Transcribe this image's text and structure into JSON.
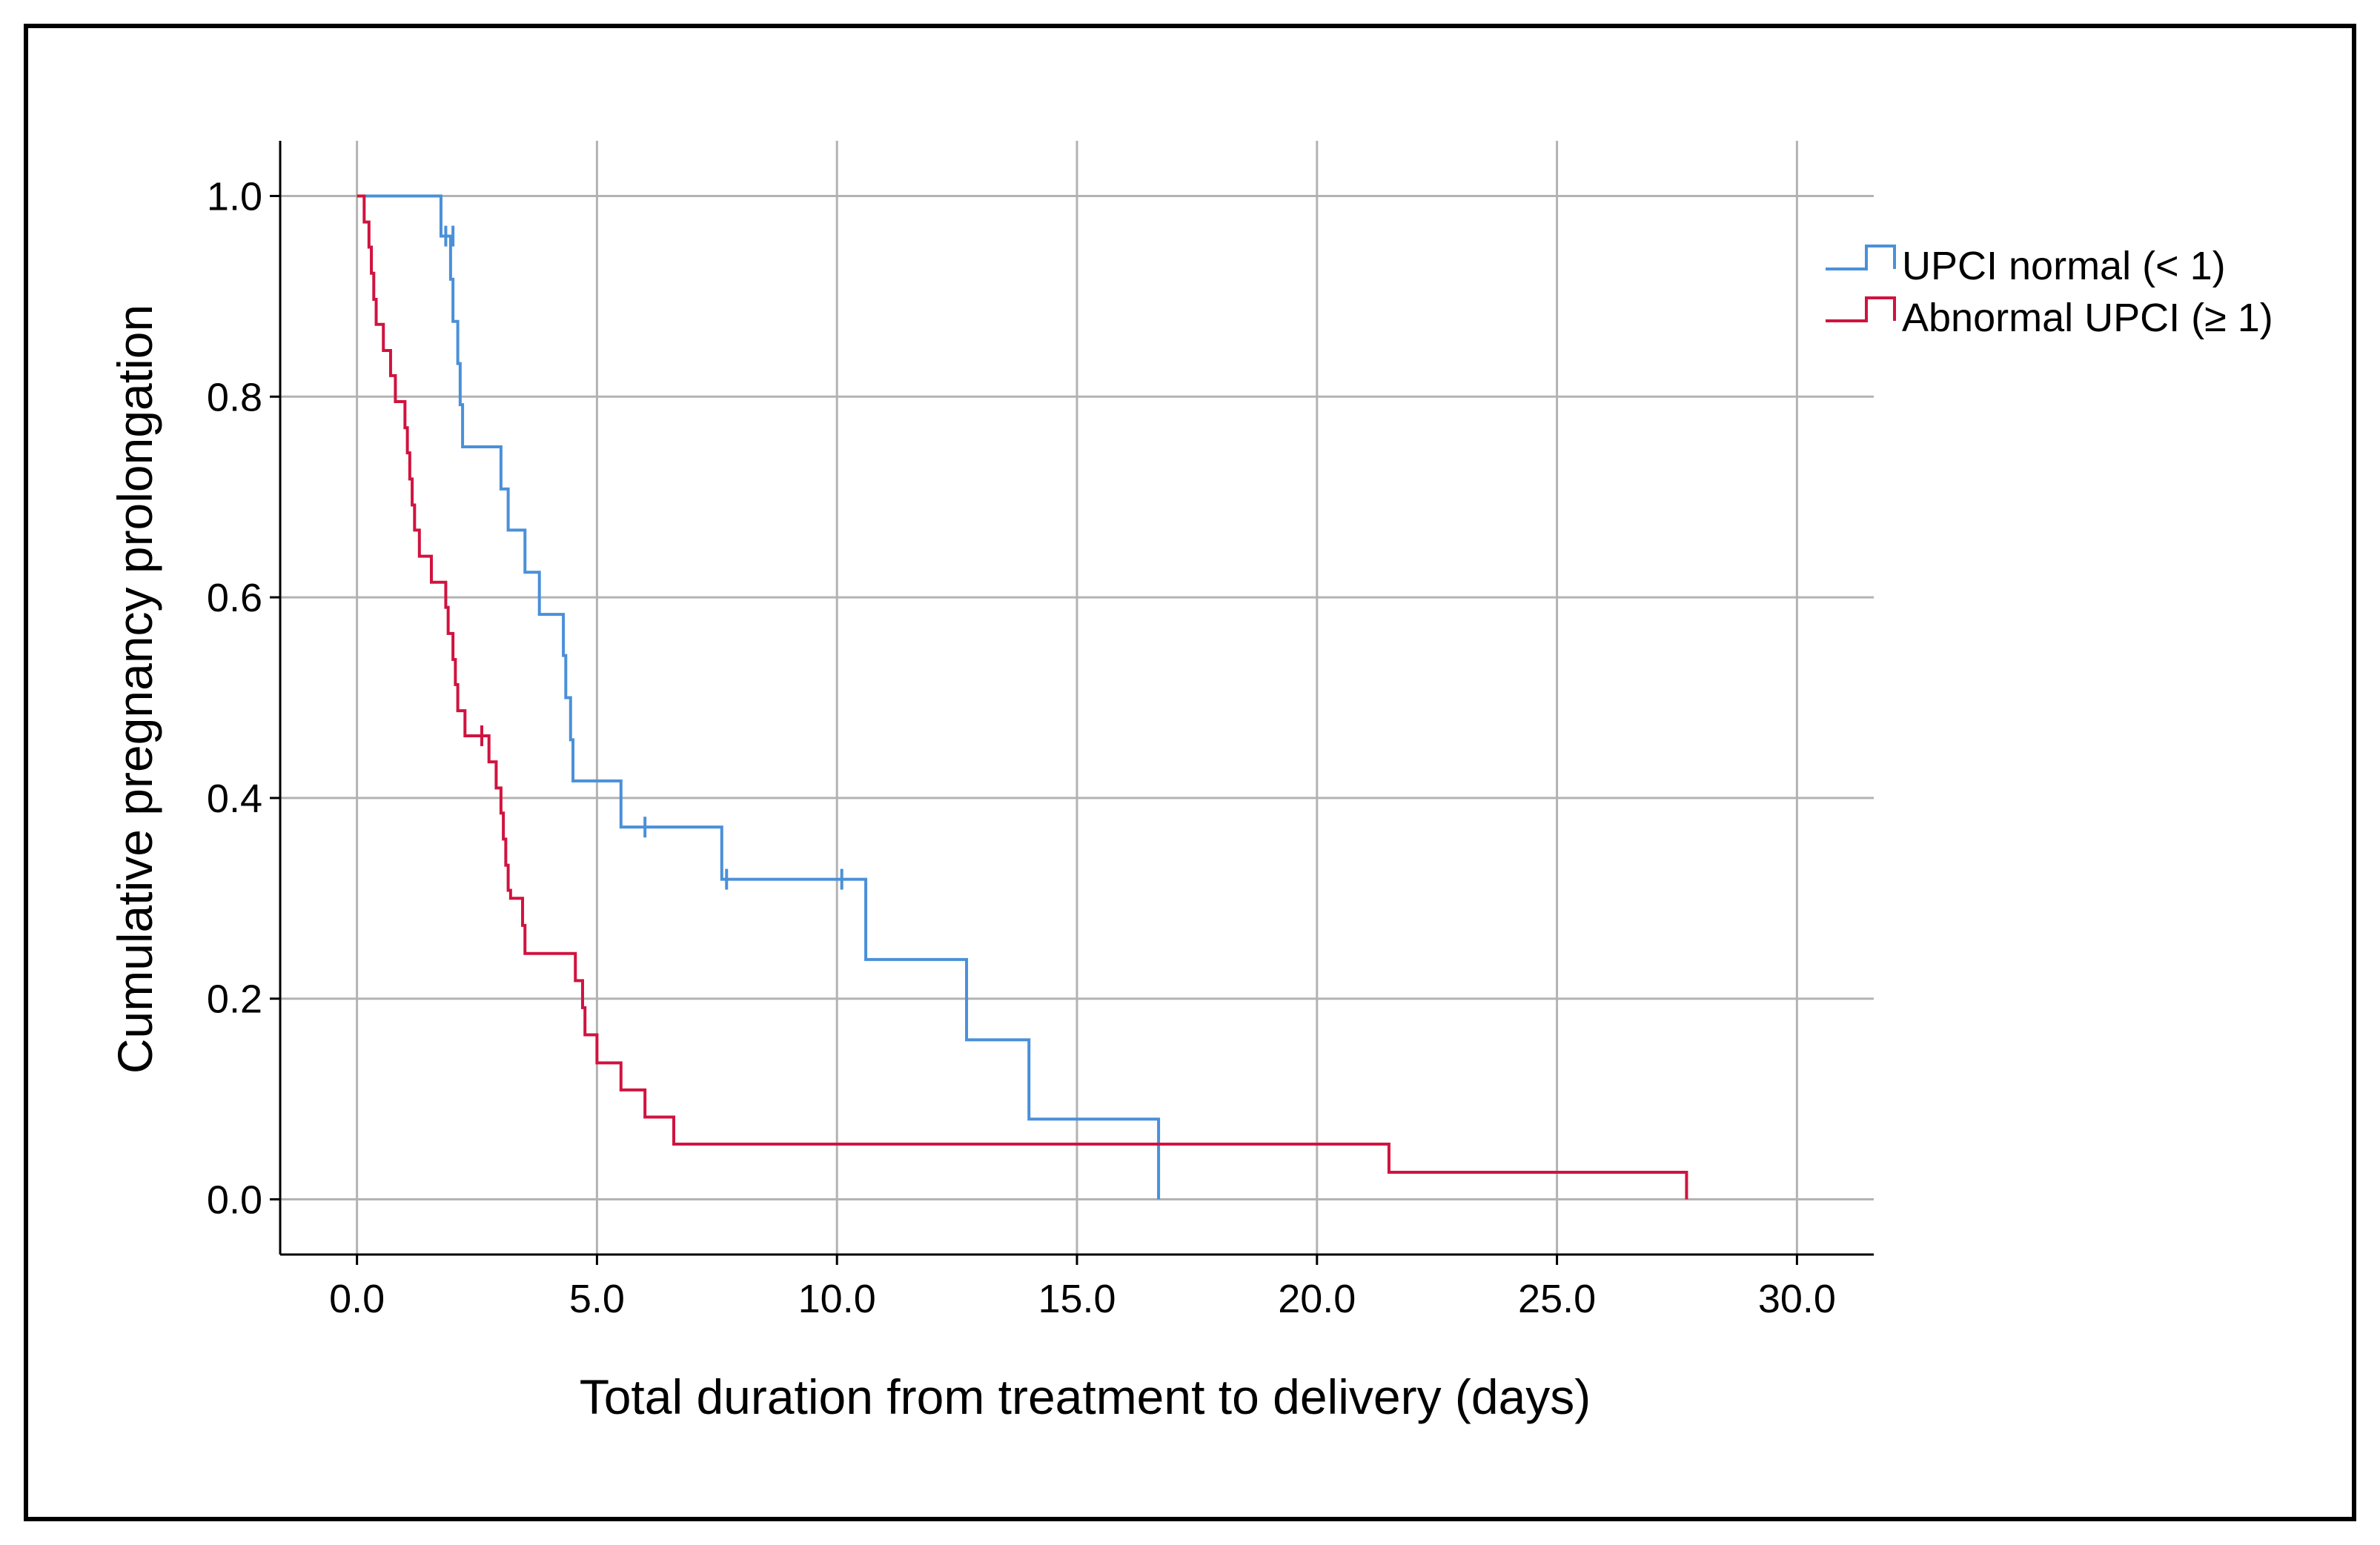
{
  "chart_data": {
    "type": "line",
    "subtype": "kaplan-meier step",
    "xlabel": "Total duration from treatment to delivery (days)",
    "ylabel": "Cumulative pregnancy prolongation",
    "xlim": [
      -1.6,
      31.6
    ],
    "ylim": [
      -0.055,
      1.055
    ],
    "xticks": [
      0,
      5,
      10,
      15,
      20,
      25,
      30
    ],
    "xtick_labels": [
      "0.0",
      "5.0",
      "10.0",
      "15.0",
      "20.0",
      "25.0",
      "30.0"
    ],
    "yticks": [
      0,
      0.2,
      0.4,
      0.6,
      0.8,
      1.0
    ],
    "ytick_labels": [
      "0.0",
      "0.2",
      "0.4",
      "0.6",
      "0.8",
      "1.0"
    ],
    "grid": true,
    "legend_position": "right",
    "series": [
      {
        "name": "UPCI normal (< 1)",
        "color": "#4a90d9",
        "steps": [
          [
            0.0,
            1.0
          ],
          [
            1.75,
            0.96
          ],
          [
            1.95,
            0.917
          ],
          [
            2.0,
            0.875
          ],
          [
            2.1,
            0.833
          ],
          [
            2.15,
            0.792
          ],
          [
            2.2,
            0.75
          ],
          [
            3.0,
            0.708
          ],
          [
            3.15,
            0.667
          ],
          [
            3.5,
            0.625
          ],
          [
            3.8,
            0.583
          ],
          [
            4.3,
            0.542
          ],
          [
            4.35,
            0.5
          ],
          [
            4.45,
            0.458
          ],
          [
            4.5,
            0.417
          ],
          [
            5.5,
            0.371
          ],
          [
            7.6,
            0.319
          ],
          [
            10.6,
            0.239
          ],
          [
            12.7,
            0.159
          ],
          [
            14.0,
            0.08
          ],
          [
            16.7,
            0.0
          ]
        ],
        "end": 16.7,
        "censored": [
          [
            1.85,
            0.96
          ],
          [
            2.0,
            0.96
          ],
          [
            6.0,
            0.371
          ],
          [
            7.7,
            0.319
          ],
          [
            10.1,
            0.319
          ]
        ]
      },
      {
        "name": "Abnormal UPCI (≥ 1)",
        "color": "#d0133f",
        "steps": [
          [
            0.0,
            1.0
          ],
          [
            0.15,
            0.974
          ],
          [
            0.25,
            0.949
          ],
          [
            0.3,
            0.923
          ],
          [
            0.35,
            0.897
          ],
          [
            0.4,
            0.872
          ],
          [
            0.55,
            0.846
          ],
          [
            0.7,
            0.821
          ],
          [
            0.8,
            0.795
          ],
          [
            1.0,
            0.769
          ],
          [
            1.05,
            0.744
          ],
          [
            1.1,
            0.718
          ],
          [
            1.15,
            0.692
          ],
          [
            1.2,
            0.667
          ],
          [
            1.3,
            0.641
          ],
          [
            1.55,
            0.615
          ],
          [
            1.85,
            0.59
          ],
          [
            1.9,
            0.564
          ],
          [
            2.0,
            0.538
          ],
          [
            2.05,
            0.513
          ],
          [
            2.1,
            0.487
          ],
          [
            2.25,
            0.462
          ],
          [
            2.75,
            0.436
          ],
          [
            2.9,
            0.41
          ],
          [
            3.0,
            0.385
          ],
          [
            3.05,
            0.359
          ],
          [
            3.1,
            0.333
          ],
          [
            3.15,
            0.308
          ],
          [
            3.2,
            0.3
          ],
          [
            3.45,
            0.273
          ],
          [
            3.5,
            0.245
          ],
          [
            4.55,
            0.218
          ],
          [
            4.7,
            0.191
          ],
          [
            4.75,
            0.164
          ],
          [
            5.0,
            0.136
          ],
          [
            5.5,
            0.109
          ],
          [
            6.0,
            0.082
          ],
          [
            6.6,
            0.055
          ],
          [
            21.5,
            0.027
          ],
          [
            27.7,
            0.0
          ]
        ],
        "end": 27.7,
        "censored": [
          [
            2.6,
            0.462
          ]
        ]
      }
    ]
  }
}
